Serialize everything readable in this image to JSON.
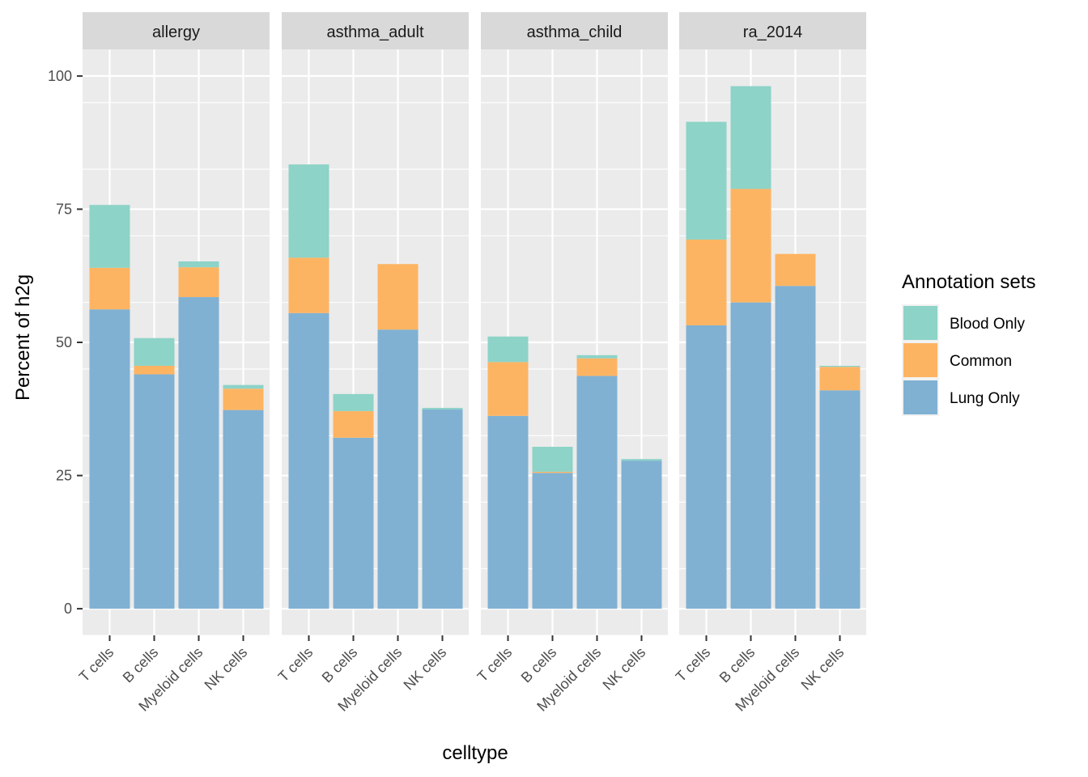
{
  "chart_data": {
    "type": "bar",
    "stacked": true,
    "xlabel": "celltype",
    "ylabel": "Percent of h2g",
    "ylim": [
      -5,
      105
    ],
    "yticks": [
      0,
      25,
      50,
      75,
      100
    ],
    "grid": true,
    "legend": {
      "title": "Annotation sets",
      "position": "right",
      "entries": [
        "Blood Only",
        "Common",
        "Lung Only"
      ]
    },
    "colors": {
      "Blood Only": "#8dd3c7",
      "Common": "#fdb462",
      "Lung Only": "#80b1d3",
      "panel_bg": "#ebebeb",
      "strip_bg": "#d9d9d9",
      "grid_major": "#ffffff"
    },
    "categories": [
      "T cells",
      "B cells",
      "Myeloid cells",
      "NK cells"
    ],
    "stack_order": [
      "Lung Only",
      "Common",
      "Blood Only"
    ],
    "panels": [
      {
        "title": "allergy",
        "series": [
          {
            "name": "Lung Only",
            "values": [
              56.2,
              44.0,
              58.5,
              37.3
            ]
          },
          {
            "name": "Common",
            "values": [
              7.8,
              1.6,
              5.6,
              4.0
            ]
          },
          {
            "name": "Blood Only",
            "values": [
              11.8,
              5.2,
              1.1,
              0.7
            ]
          }
        ]
      },
      {
        "title": "asthma_adult",
        "series": [
          {
            "name": "Lung Only",
            "values": [
              55.5,
              32.1,
              52.4,
              37.4
            ]
          },
          {
            "name": "Common",
            "values": [
              10.4,
              5.0,
              12.3,
              0.0
            ]
          },
          {
            "name": "Blood Only",
            "values": [
              17.5,
              3.2,
              0.0,
              0.3
            ]
          }
        ]
      },
      {
        "title": "asthma_child",
        "series": [
          {
            "name": "Lung Only",
            "values": [
              36.2,
              25.5,
              43.7,
              27.8
            ]
          },
          {
            "name": "Common",
            "values": [
              10.1,
              0.2,
              3.3,
              0.0
            ]
          },
          {
            "name": "Blood Only",
            "values": [
              4.8,
              4.7,
              0.6,
              0.3
            ]
          }
        ]
      },
      {
        "title": "ra_2014",
        "series": [
          {
            "name": "Lung Only",
            "values": [
              53.2,
              57.5,
              60.6,
              41.0
            ]
          },
          {
            "name": "Common",
            "values": [
              16.1,
              21.3,
              6.0,
              4.4
            ]
          },
          {
            "name": "Blood Only",
            "values": [
              22.1,
              19.3,
              0.0,
              0.2
            ]
          }
        ]
      }
    ]
  }
}
